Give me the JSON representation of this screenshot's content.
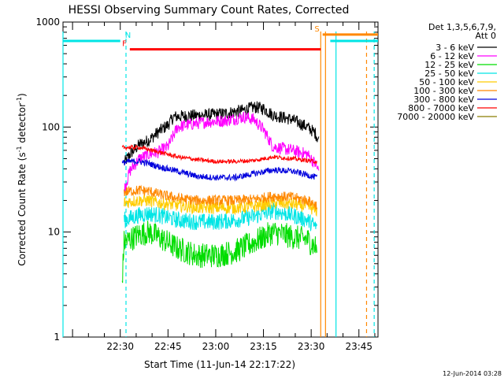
{
  "chart_data": {
    "type": "line",
    "title": "HESSI Observing Summary Count Rates, Corrected",
    "xlabel": "Start Time (11-Jun-14 22:17:22)",
    "ylabel_main": "Corrected Count Rate (s",
    "ylabel_sup1": "-1",
    "ylabel_mid": " detector",
    "ylabel_sup2": "-1",
    "ylabel_end": ")",
    "y_scale": "log",
    "ylim": [
      1,
      1000
    ],
    "xlim_minutes": [
      22.2,
      23.85
    ],
    "x_ticks": [
      {
        "t": 22.5,
        "label": "22:30"
      },
      {
        "t": 22.75,
        "label": "22:45"
      },
      {
        "t": 23.0,
        "label": "23:00"
      },
      {
        "t": 23.25,
        "label": "23:15"
      },
      {
        "t": 23.5,
        "label": "23:30"
      },
      {
        "t": 23.75,
        "label": "23:45"
      }
    ],
    "y_ticks": [
      {
        "v": 1,
        "label": "1"
      },
      {
        "v": 10,
        "label": "10"
      },
      {
        "v": 100,
        "label": "100"
      },
      {
        "v": 1000,
        "label": "1000"
      }
    ],
    "legend_header": [
      "Det 1,3,5,6,7,9,",
      "Att 0"
    ],
    "legend_placement": "right",
    "series": [
      {
        "name": "3 - 6 keV",
        "color": "#000000",
        "values": [
          [
            22.52,
            45
          ],
          [
            22.55,
            55
          ],
          [
            22.6,
            68
          ],
          [
            22.65,
            75
          ],
          [
            22.7,
            90
          ],
          [
            22.75,
            105
          ],
          [
            22.78,
            125
          ],
          [
            22.85,
            128
          ],
          [
            22.95,
            130
          ],
          [
            23.05,
            135
          ],
          [
            23.15,
            145
          ],
          [
            23.2,
            155
          ],
          [
            23.25,
            150
          ],
          [
            23.3,
            130
          ],
          [
            23.4,
            118
          ],
          [
            23.48,
            100
          ],
          [
            23.52,
            88
          ],
          [
            23.54,
            75
          ]
        ]
      },
      {
        "name": "6 - 12 keV",
        "color": "#ff00ff",
        "values": [
          [
            22.52,
            25
          ],
          [
            22.55,
            38
          ],
          [
            22.6,
            50
          ],
          [
            22.65,
            55
          ],
          [
            22.7,
            58
          ],
          [
            22.75,
            65
          ],
          [
            22.8,
            100
          ],
          [
            22.85,
            105
          ],
          [
            22.95,
            112
          ],
          [
            23.05,
            115
          ],
          [
            23.15,
            125
          ],
          [
            23.2,
            118
          ],
          [
            23.25,
            95
          ],
          [
            23.3,
            65
          ],
          [
            23.4,
            60
          ],
          [
            23.48,
            55
          ],
          [
            23.52,
            45
          ],
          [
            23.54,
            38
          ]
        ]
      },
      {
        "name": "12 - 25 keV",
        "color": "#00dd00",
        "values": [
          [
            22.51,
            3.5
          ],
          [
            22.52,
            8
          ],
          [
            22.55,
            8.5
          ],
          [
            22.6,
            9.5
          ],
          [
            22.65,
            10
          ],
          [
            22.7,
            9
          ],
          [
            22.8,
            7
          ],
          [
            22.9,
            6
          ],
          [
            23.0,
            6
          ],
          [
            23.1,
            6.5
          ],
          [
            23.2,
            8
          ],
          [
            23.3,
            10
          ],
          [
            23.4,
            9
          ],
          [
            23.48,
            8.5
          ],
          [
            23.53,
            7
          ]
        ]
      },
      {
        "name": "25 - 50 keV",
        "color": "#00e5e5",
        "values": [
          [
            22.52,
            13
          ],
          [
            22.55,
            13.5
          ],
          [
            22.6,
            14.5
          ],
          [
            22.65,
            15
          ],
          [
            22.7,
            14.5
          ],
          [
            22.8,
            13
          ],
          [
            22.9,
            12.5
          ],
          [
            23.0,
            12.5
          ],
          [
            23.1,
            13
          ],
          [
            23.2,
            14
          ],
          [
            23.3,
            16
          ],
          [
            23.4,
            14.5
          ],
          [
            23.48,
            13
          ],
          [
            23.53,
            11
          ]
        ]
      },
      {
        "name": "50 - 100 keV",
        "color": "#ffcc00",
        "values": [
          [
            22.52,
            19
          ],
          [
            22.55,
            19.5
          ],
          [
            22.6,
            20
          ],
          [
            22.65,
            20
          ],
          [
            22.7,
            19
          ],
          [
            22.8,
            18
          ],
          [
            22.9,
            17
          ],
          [
            23.0,
            17
          ],
          [
            23.1,
            17
          ],
          [
            23.2,
            17.5
          ],
          [
            23.3,
            19
          ],
          [
            23.4,
            18.5
          ],
          [
            23.48,
            17.5
          ],
          [
            23.53,
            16
          ]
        ]
      },
      {
        "name": "100 - 300 keV",
        "color": "#ff8800",
        "values": [
          [
            22.52,
            24
          ],
          [
            22.55,
            24.5
          ],
          [
            22.6,
            25
          ],
          [
            22.65,
            24.5
          ],
          [
            22.7,
            23
          ],
          [
            22.8,
            21
          ],
          [
            22.9,
            20
          ],
          [
            23.0,
            20
          ],
          [
            23.1,
            20
          ],
          [
            23.2,
            20.5
          ],
          [
            23.3,
            22
          ],
          [
            23.4,
            21.5
          ],
          [
            23.48,
            20
          ],
          [
            23.53,
            18
          ]
        ]
      },
      {
        "name": "300 - 800 keV",
        "color": "#0000dd",
        "values": [
          [
            22.51,
            45
          ],
          [
            22.52,
            46
          ],
          [
            22.55,
            47
          ],
          [
            22.6,
            47
          ],
          [
            22.65,
            45
          ],
          [
            22.7,
            42
          ],
          [
            22.8,
            38
          ],
          [
            22.9,
            34
          ],
          [
            23.0,
            33
          ],
          [
            23.1,
            33
          ],
          [
            23.2,
            36
          ],
          [
            23.3,
            39
          ],
          [
            23.4,
            38
          ],
          [
            23.48,
            35
          ],
          [
            23.53,
            33
          ]
        ]
      },
      {
        "name": "800 - 7000 keV",
        "color": "#ff0000",
        "values": [
          [
            22.51,
            64
          ],
          [
            22.55,
            64
          ],
          [
            22.6,
            64
          ],
          [
            22.7,
            58
          ],
          [
            22.8,
            52
          ],
          [
            22.9,
            49
          ],
          [
            23.0,
            47
          ],
          [
            23.1,
            47
          ],
          [
            23.2,
            48
          ],
          [
            23.3,
            52
          ],
          [
            23.4,
            50
          ],
          [
            23.48,
            48
          ],
          [
            23.53,
            47
          ]
        ]
      },
      {
        "name": "7000 - 20000 keV",
        "color": "#8b7d00",
        "values": []
      }
    ],
    "flag_bars": [
      {
        "label": "N",
        "color": "#00e5e5",
        "y": 660,
        "segments": [
          [
            22.2,
            22.5
          ],
          [
            23.6,
            23.85
          ]
        ]
      },
      {
        "label": "F",
        "color": "#ff0000",
        "y": 550,
        "segments": [
          [
            22.55,
            23.55
          ]
        ]
      },
      {
        "label": "S",
        "color": "#ff8800",
        "y": 760,
        "segments": [
          [
            23.56,
            23.85
          ]
        ]
      }
    ],
    "vlines": [
      {
        "t": 22.2,
        "color": "#00e5e5",
        "style": "solid"
      },
      {
        "t": 22.53,
        "color": "#00e5e5",
        "style": "dashed"
      },
      {
        "t": 23.55,
        "color": "#ff8800",
        "style": "solid"
      },
      {
        "t": 23.575,
        "color": "#ff8800",
        "style": "solid"
      },
      {
        "t": 23.63,
        "color": "#00e5e5",
        "style": "solid"
      },
      {
        "t": 23.79,
        "color": "#ff8800",
        "style": "dashed"
      },
      {
        "t": 23.83,
        "color": "#00e5e5",
        "style": "dashed"
      }
    ]
  },
  "timestamp": "12-Jun-2014 03:28"
}
